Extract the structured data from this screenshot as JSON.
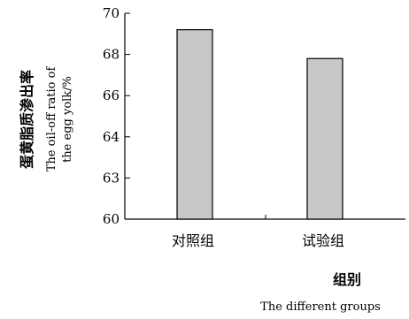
{
  "chart_data": {
    "type": "bar",
    "categories": [
      "对照组",
      "试验组"
    ],
    "values": [
      69.2,
      67.8
    ],
    "ylim": [
      60,
      70
    ],
    "yticks": [
      "60",
      "63",
      "64",
      "66",
      "68",
      "70"
    ],
    "ylabel_cn": "蛋黄脂质渗出率",
    "ylabel_en_line1": "The oil-off ratio of",
    "ylabel_en_line2": "the egg yolk/%",
    "xlabel_cn": "组别",
    "xlabel_en": "The different groups",
    "bar_color": "#c8c8c8",
    "grid": false
  }
}
